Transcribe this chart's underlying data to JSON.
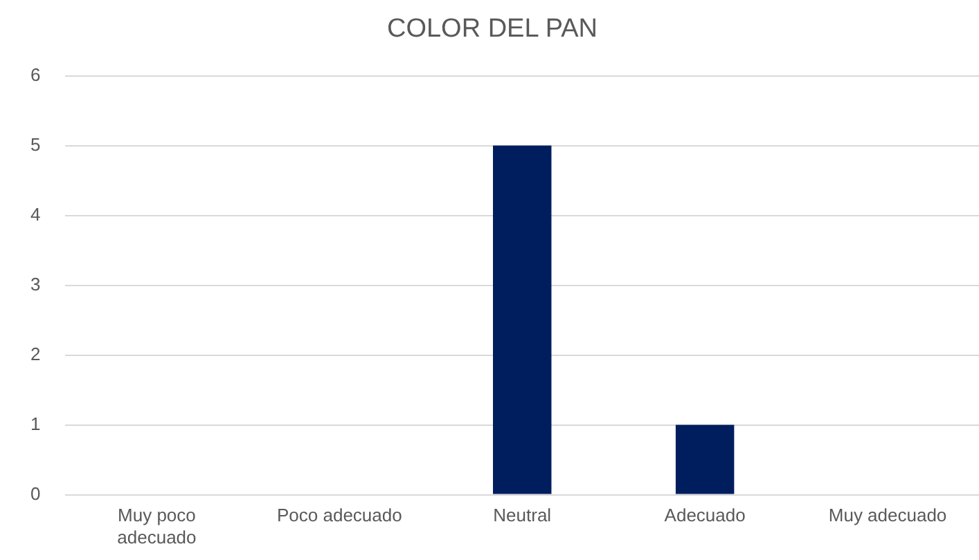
{
  "chart_data": {
    "type": "bar",
    "title": "COLOR DEL PAN",
    "categories": [
      "Muy poco adecuado",
      "Poco adecuado",
      "Neutral",
      "Adecuado",
      "Muy adecuado"
    ],
    "values": [
      0,
      0,
      5,
      1,
      0
    ],
    "color": "#001e5e",
    "ylim": [
      0,
      6
    ],
    "yticks": [
      0,
      1,
      2,
      3,
      4,
      5,
      6
    ],
    "grid": "y",
    "legend": false
  }
}
